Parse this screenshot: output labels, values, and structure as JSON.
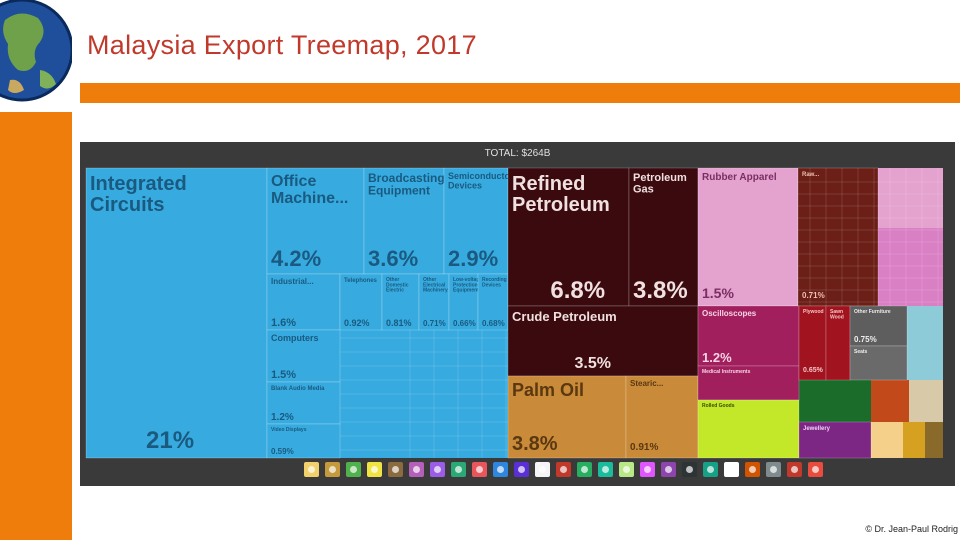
{
  "page": {
    "title": "Malaysia Export Treemap, 2017",
    "copyright": "© Dr. Jean-Paul Rodrig"
  },
  "colors": {
    "accent_orange": "#ef7d0c",
    "title_red": "#c0392b",
    "panel_bg": "#3a3a3a"
  },
  "chart_data": {
    "type": "treemap",
    "total": "TOTAL: $264B",
    "tiles": [
      {
        "label": "Integrated Circuits",
        "value": "21%"
      },
      {
        "label": "Office Machine...",
        "value": "4.2%"
      },
      {
        "label": "Broadcasting Equipment",
        "value": "3.6%"
      },
      {
        "label": "Semiconductor Devices",
        "value": "2.9%"
      },
      {
        "label": "Industrial...",
        "value": "1.6%"
      },
      {
        "label": "Telephones",
        "value": "0.92%"
      },
      {
        "label": "Other Domestic Electric Appliances",
        "value": "0.81%"
      },
      {
        "label": "Other Electrical Machinery",
        "value": "0.71%"
      },
      {
        "label": "Low-voltage Protection Equipment",
        "value": "0.66%"
      },
      {
        "label": "Recording Devices",
        "value": "0.68%"
      },
      {
        "label": "Computers",
        "value": "1.5%"
      },
      {
        "label": "Blank Audio Media",
        "value": "1.2%"
      },
      {
        "label": "Video Displays",
        "value": "0.59%"
      },
      {
        "label": "Refined Petroleum",
        "value": "6.8%"
      },
      {
        "label": "Petroleum Gas",
        "value": "3.8%"
      },
      {
        "label": "Crude Petroleum",
        "value": "3.5%"
      },
      {
        "label": "Palm Oil",
        "value": "3.8%"
      },
      {
        "label": "Stearic...",
        "value": "0.91%"
      },
      {
        "label": "Rubber Apparel",
        "value": "1.5%"
      },
      {
        "label": "Raw...",
        "value": "0.71%"
      },
      {
        "label": "Oscilloscopes",
        "value": "1.2%"
      },
      {
        "label": "Medical Instruments",
        "value": ""
      },
      {
        "label": "Plywood",
        "value": "0.65%"
      },
      {
        "label": "Sawn Wood",
        "value": ""
      },
      {
        "label": "Other Furniture",
        "value": "0.75%"
      },
      {
        "label": "Seats",
        "value": ""
      },
      {
        "label": "Rolled Goods",
        "value": ""
      },
      {
        "label": "Jewellery",
        "value": ""
      }
    ],
    "category_colors": [
      "#f2d16b",
      "#c49a3c",
      "#4fb24c",
      "#f0e442",
      "#8b6a3f",
      "#b45fb8",
      "#9b5de5",
      "#2aa876",
      "#e8555a",
      "#2e86de",
      "#5a2fd6",
      "#f5f5f5",
      "#c0392b",
      "#27ae60",
      "#1abc9c",
      "#b8e986",
      "#e056fd",
      "#8e44ad",
      "#2d3436",
      "#16a085",
      "#ffffff",
      "#d35400",
      "#7f8c8d",
      "#c0392b",
      "#e74c3c"
    ]
  }
}
